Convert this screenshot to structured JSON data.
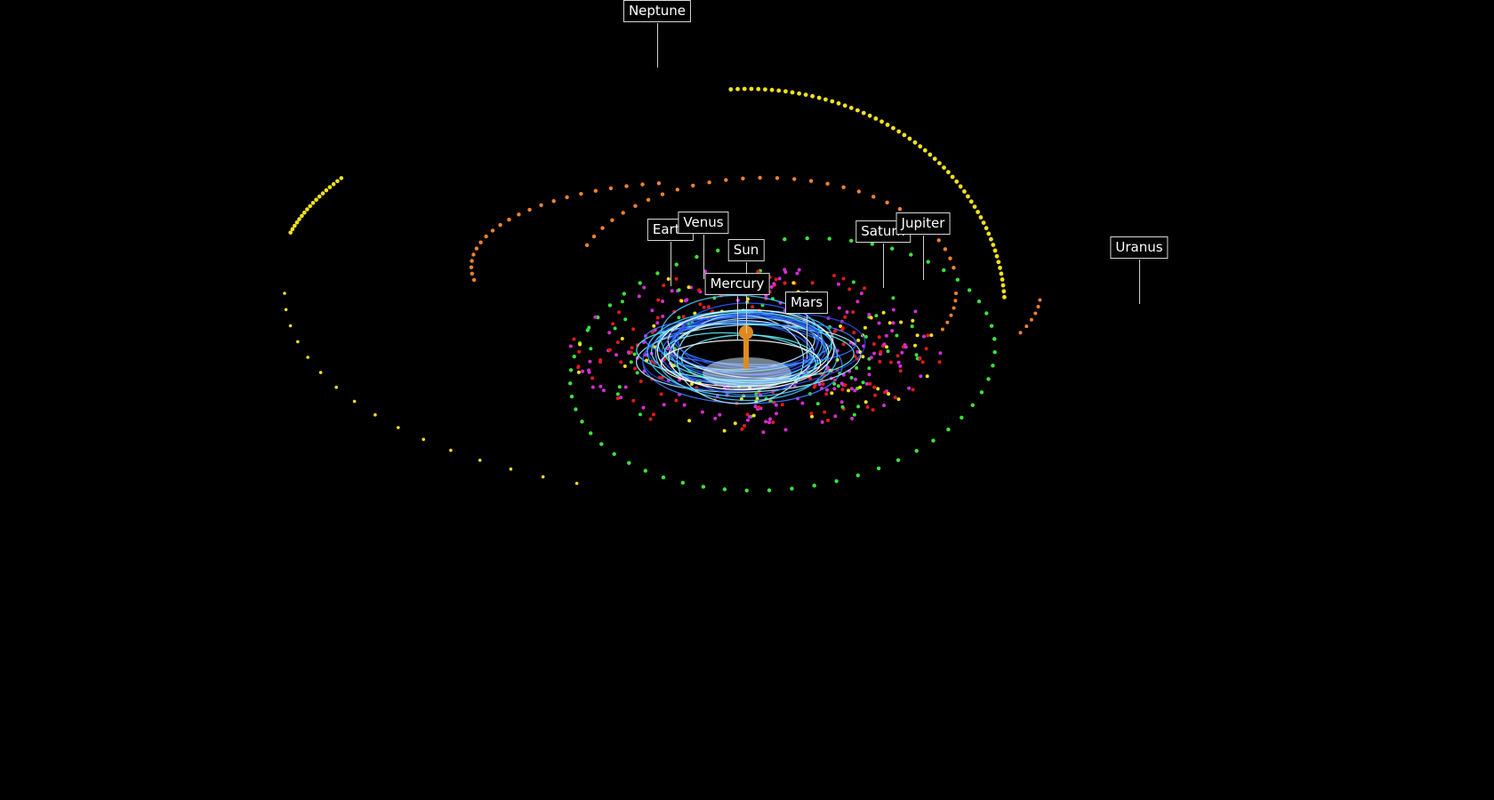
{
  "scene": {
    "background": "#000000",
    "sun_color": "#e08a1e"
  },
  "labels": [
    {
      "key": "neptune",
      "text": "Neptune"
    },
    {
      "key": "earth",
      "text": "Earth"
    },
    {
      "key": "venus",
      "text": "Venus"
    },
    {
      "key": "sun",
      "text": "Sun"
    },
    {
      "key": "mercury",
      "text": "Mercury"
    },
    {
      "key": "mars",
      "text": "Mars"
    },
    {
      "key": "saturn",
      "text": "Saturn"
    },
    {
      "key": "jupiter",
      "text": "Jupiter"
    },
    {
      "key": "uranus",
      "text": "Uranus"
    }
  ],
  "orbit_colors": {
    "neptune": "#f2e21c",
    "uranus": "#f08230",
    "saturn": "#3be23b",
    "jupiter": "#d62cd6",
    "mars": "#e21b1b",
    "inner": "#4a7cff"
  }
}
